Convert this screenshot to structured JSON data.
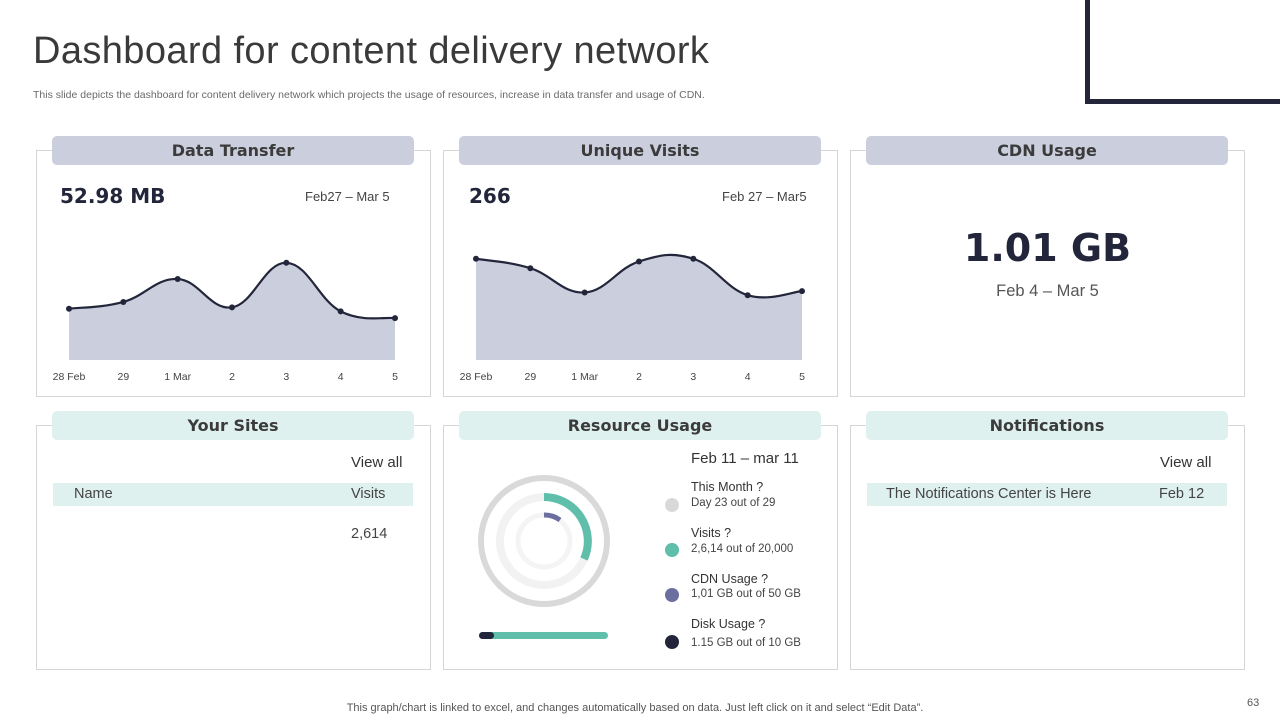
{
  "slide": {
    "title": "Dashboard for content delivery network",
    "subtitle": "This slide depicts the dashboard for content delivery network which projects the usage of resources, increase in data transfer and usage of CDN.",
    "footer_note": "This graph/chart is linked to excel, and changes automatically based on data. Just left click on it and select “Edit Data”.",
    "page_number": "63"
  },
  "data_transfer": {
    "header": "Data Transfer",
    "value": "52.98 MB",
    "range": "Feb27  – Mar 5"
  },
  "unique_visits": {
    "header": "Unique Visits",
    "value": "266",
    "range": "Feb 27 –  Mar5"
  },
  "cdn_usage": {
    "header": "CDN Usage",
    "value": "1.01 GB",
    "range": "Feb 4 –  Mar 5"
  },
  "your_sites": {
    "header": "Your Sites",
    "view_all": "View all",
    "columns": [
      "Name",
      "Visits"
    ],
    "rows": [
      {
        "name": "",
        "visits": "2,614"
      }
    ]
  },
  "resource_usage": {
    "header": "Resource Usage",
    "range": "Feb 11 – mar 11",
    "items": [
      {
        "title": "This Month ?",
        "detail": "Day 23 out of 29",
        "color": "#d9d9d9"
      },
      {
        "title": "Visits ?",
        "detail": "2,6,14 out of 20,000",
        "color": "#5fbfab"
      },
      {
        "title": "CDN Usage  ?",
        "detail": "1,01 GB out of 50 GB",
        "color": "#6b6fa0"
      },
      {
        "title": "Disk Usage  ?",
        "detail": "1.15 GB out of 10 GB",
        "color": "#23263a"
      }
    ],
    "progress_fraction": 0.115
  },
  "notifications": {
    "header": "Notifications",
    "view_all": "View all",
    "items": [
      {
        "text": "The Notifications Center is Here",
        "date": "Feb 12"
      }
    ]
  },
  "colors": {
    "accent_dark": "#23263a",
    "area_fill": "#cbcedd",
    "header_purple": "#cbcedd",
    "header_mint": "#dff1ee",
    "teal": "#5fbfab",
    "indigo": "#6b6fa0",
    "light_gray": "#d9d9d9"
  },
  "chart_data": [
    {
      "type": "area",
      "categories": [
        "28 Feb",
        "29",
        "1 Mar",
        "2",
        "3",
        "4",
        "5"
      ],
      "values": [
        38,
        43,
        60,
        39,
        72,
        36,
        31
      ],
      "ylim": [
        0,
        100
      ],
      "grid": false
    },
    {
      "type": "area",
      "categories": [
        "28 Feb",
        "29",
        "1 Mar",
        "2",
        "3",
        "4",
        "5"
      ],
      "values": [
        75,
        68,
        50,
        73,
        75,
        48,
        51
      ],
      "ylim": [
        0,
        100
      ],
      "grid": false
    }
  ]
}
